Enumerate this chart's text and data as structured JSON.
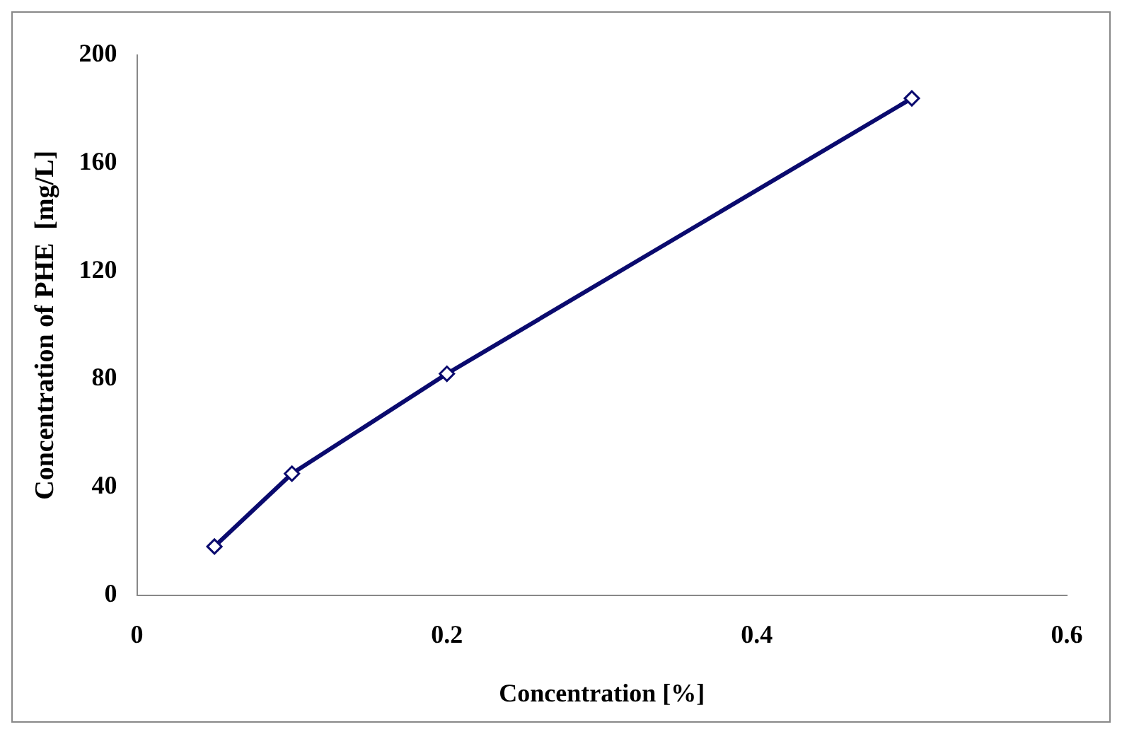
{
  "chart_data": {
    "type": "line",
    "xlabel": "Concentration [%]",
    "ylabel": "Concentration of PHE  [mg/L]",
    "x": [
      0.05,
      0.1,
      0.2,
      0.5
    ],
    "series": [
      {
        "color": "#0a0a6e",
        "values": [
          18,
          45,
          82,
          184
        ]
      }
    ],
    "xlim": [
      0,
      0.6
    ],
    "xticks": [
      0,
      0.2,
      0.4,
      0.6
    ],
    "ylim": [
      0,
      200
    ],
    "yticks": [
      0,
      40,
      80,
      120,
      160,
      200
    ],
    "grid": false,
    "legend": false,
    "marker": "diamond",
    "line_style": "solid"
  }
}
